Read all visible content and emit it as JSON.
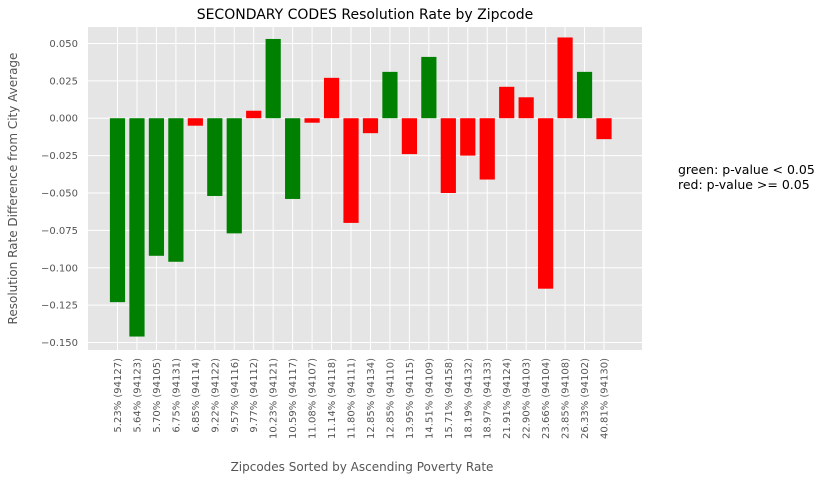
{
  "chart_data": {
    "type": "bar",
    "title": "SECONDARY CODES Resolution Rate by Zipcode",
    "xlabel": "Zipcodes Sorted by Ascending Poverty Rate",
    "ylabel": "Resolution Rate Difference from City Average",
    "ylim": [
      -0.155,
      0.061
    ],
    "yticks": [
      0.05,
      0.025,
      0.0,
      -0.025,
      -0.05,
      -0.075,
      -0.1,
      -0.125,
      -0.15
    ],
    "ytick_labels": [
      "0.050",
      "0.025",
      "0.000",
      "−0.025",
      "−0.050",
      "−0.075",
      "−0.100",
      "−0.125",
      "−0.150"
    ],
    "grid": true,
    "categories": [
      "5.23% (94127)",
      "5.64% (94123)",
      "5.70% (94105)",
      "6.75% (94131)",
      "6.85% (94114)",
      "9.22% (94122)",
      "9.57% (94116)",
      "9.77% (94112)",
      "10.23% (94121)",
      "10.59% (94117)",
      "11.08% (94107)",
      "11.14% (94118)",
      "11.80% (94111)",
      "12.85% (94134)",
      "12.85% (94110)",
      "13.95% (94115)",
      "14.51% (94109)",
      "15.71% (94158)",
      "18.19% (94132)",
      "18.97% (94133)",
      "21.91% (94124)",
      "22.90% (94103)",
      "23.66% (94104)",
      "23.85% (94108)",
      "26.33% (94102)",
      "40.81% (94130)"
    ],
    "values": [
      -0.123,
      -0.146,
      -0.092,
      -0.096,
      -0.005,
      -0.052,
      -0.077,
      0.005,
      0.053,
      -0.054,
      -0.003,
      0.027,
      -0.07,
      -0.01,
      0.031,
      -0.024,
      0.041,
      -0.05,
      -0.025,
      -0.041,
      0.021,
      0.014,
      -0.114,
      0.054,
      0.031,
      -0.014
    ],
    "significant": [
      true,
      true,
      true,
      true,
      false,
      true,
      true,
      false,
      true,
      true,
      false,
      false,
      false,
      false,
      true,
      false,
      true,
      false,
      false,
      false,
      false,
      false,
      false,
      false,
      true,
      false
    ],
    "colors": {
      "significant": "#008000",
      "not_significant": "#ff0000",
      "plot_bg": "#e5e5e5",
      "grid": "#ffffff",
      "tick_text": "#555555"
    },
    "annotation": [
      "green: p-value < 0.05",
      "red: p-value >= 0.05"
    ]
  }
}
